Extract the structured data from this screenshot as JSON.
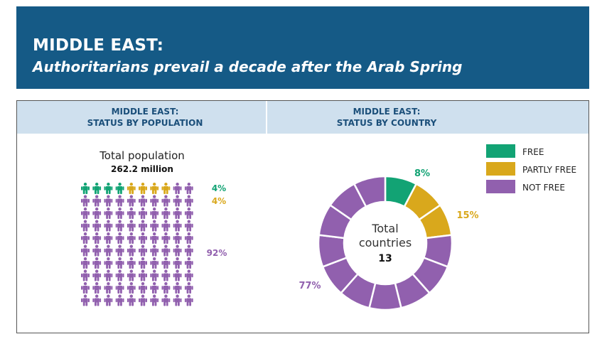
{
  "header": {
    "title": "MIDDLE EAST:",
    "subtitle": "Authoritarians prevail a decade after the Arab Spring"
  },
  "panels": {
    "left_title_line1": "MIDDLE EAST:",
    "left_title_line2": "STATUS BY POPULATION",
    "right_title_line1": "MIDDLE EAST:",
    "right_title_line2": "STATUS BY COUNTRY"
  },
  "colors": {
    "free": "#12a374",
    "partly_free": "#d9a81c",
    "not_free": "#9160ae",
    "header_bg": "#155a86"
  },
  "chart_data": [
    {
      "type": "pictogram",
      "title": "MIDDLE EAST: STATUS BY POPULATION",
      "total_label": "Total population",
      "total_value": "262.2 million",
      "icons_total": 100,
      "grid_cols": 10,
      "series": [
        {
          "name": "FREE",
          "percent": 4,
          "label": "4%",
          "color": "#12a374"
        },
        {
          "name": "PARTLY FREE",
          "percent": 4,
          "label": "4%",
          "color": "#d9a81c"
        },
        {
          "name": "NOT FREE",
          "percent": 92,
          "label": "92%",
          "color": "#9160ae"
        }
      ]
    },
    {
      "type": "pie",
      "donut": true,
      "title": "MIDDLE EAST: STATUS BY COUNTRY",
      "center_label_line1": "Total",
      "center_label_line2": "countries",
      "center_value": "13",
      "total": 13,
      "slices": [
        {
          "name": "FREE",
          "count": 1,
          "label": "8%",
          "color": "#12a374"
        },
        {
          "name": "PARTLY FREE",
          "count": 2,
          "label": "15%",
          "color": "#d9a81c"
        },
        {
          "name": "NOT FREE",
          "count": 10,
          "label": "77%",
          "color": "#9160ae"
        }
      ],
      "legend": {
        "position": "top-right",
        "items": [
          {
            "label": "FREE",
            "color": "#12a374"
          },
          {
            "label": "PARTLY FREE",
            "color": "#d9a81c"
          },
          {
            "label": "NOT FREE",
            "color": "#9160ae"
          }
        ]
      }
    }
  ]
}
